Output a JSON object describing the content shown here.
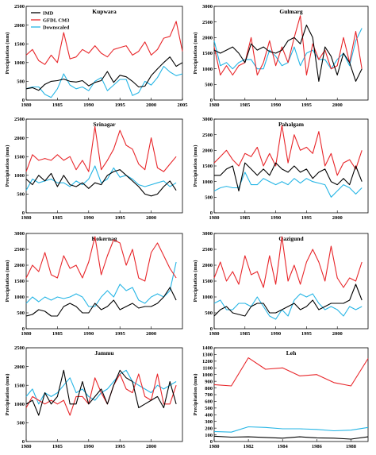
{
  "colors": {
    "IMD": "#000000",
    "GFDL CM3": "#e8262a",
    "Downscaled": "#25b5e5"
  },
  "legend": [
    {
      "name": "IMD",
      "color": "#000000"
    },
    {
      "name": "GFDL CM3",
      "color": "#e8262a"
    },
    {
      "name": "Downscaled",
      "color": "#25b5e5"
    }
  ],
  "chart_data": [
    {
      "type": "line",
      "title": "Kupwara",
      "ylabel": "Precipitation (mm)",
      "xlim": [
        1980,
        2005
      ],
      "ylim": [
        0,
        2500
      ],
      "xticks": [
        1980,
        1985,
        1990,
        1995,
        2000,
        2005
      ],
      "yticks": [
        0,
        500,
        1000,
        1500,
        2000,
        2500
      ],
      "legend": "top-left",
      "x": [
        1980,
        1981,
        1982,
        1983,
        1984,
        1985,
        1986,
        1987,
        1988,
        1989,
        1990,
        1991,
        1992,
        1993,
        1994,
        1995,
        1996,
        1997,
        1998,
        1999,
        2000,
        2001,
        2002,
        2003,
        2004,
        2005
      ],
      "series": [
        {
          "name": "IMD",
          "values": [
            300,
            330,
            260,
            420,
            500,
            520,
            560,
            500,
            480,
            520,
            380,
            470,
            520,
            760,
            470,
            660,
            620,
            500,
            350,
            370,
            650,
            830,
            1000,
            1150,
            900,
            1000
          ]
        },
        {
          "name": "GFDL CM3",
          "values": [
            1200,
            1350,
            1050,
            950,
            1200,
            1000,
            1800,
            1100,
            1150,
            1350,
            1250,
            1450,
            1250,
            1150,
            1350,
            1400,
            1450,
            1200,
            1300,
            1550,
            1200,
            1350,
            1650,
            1700,
            2100,
            1300
          ]
        },
        {
          "name": "Downscaled",
          "values": [
            300,
            350,
            350,
            150,
            70,
            300,
            700,
            400,
            300,
            350,
            250,
            500,
            600,
            250,
            400,
            550,
            550,
            120,
            200,
            500,
            400,
            600,
            900,
            750,
            650,
            700
          ]
        }
      ]
    },
    {
      "type": "line",
      "title": "Gulmarg",
      "ylabel": "Precipitation (mm)",
      "xlim": [
        1980,
        2005
      ],
      "ylim": [
        0,
        3000
      ],
      "xticks": [
        1980,
        1985,
        1990,
        1995,
        2000
      ],
      "yticks": [
        0,
        500,
        1000,
        1500,
        2000,
        2500,
        3000
      ],
      "x": [
        1980,
        1981,
        1982,
        1983,
        1984,
        1985,
        1986,
        1987,
        1988,
        1989,
        1990,
        1991,
        1992,
        1993,
        1994,
        1995,
        1996,
        1997,
        1998,
        1999,
        2000,
        2001,
        2002,
        2003,
        2004
      ],
      "series": [
        {
          "name": "IMD",
          "values": [
            1600,
            1500,
            1600,
            1700,
            1500,
            1200,
            1800,
            1600,
            1700,
            1550,
            1500,
            1600,
            1900,
            2000,
            1800,
            2400,
            2000,
            600,
            1700,
            1400,
            800,
            1500,
            1200,
            600,
            1000
          ]
        },
        {
          "name": "GFDL CM3",
          "values": [
            1700,
            800,
            1100,
            800,
            1100,
            1200,
            2000,
            800,
            1200,
            1900,
            1100,
            1700,
            1200,
            2000,
            2700,
            800,
            1800,
            1300,
            1600,
            1000,
            1100,
            2000,
            1200,
            2200,
            1000
          ]
        },
        {
          "name": "Downscaled",
          "values": [
            1900,
            1100,
            1200,
            1000,
            1200,
            1300,
            1300,
            1000,
            1000,
            1600,
            1400,
            1100,
            1200,
            1700,
            1100,
            1500,
            1600,
            1300,
            1300,
            1000,
            1300,
            1500,
            1100,
            1900,
            2300
          ]
        }
      ]
    },
    {
      "type": "line",
      "title": "Srinagar",
      "ylabel": "Precipitation (mm)",
      "xlim": [
        1980,
        2005
      ],
      "ylim": [
        0,
        2500
      ],
      "xticks": [
        1980,
        1985,
        1990,
        1995,
        2000
      ],
      "yticks": [
        0,
        500,
        1000,
        1500,
        2000,
        2500
      ],
      "x": [
        1980,
        1981,
        1982,
        1983,
        1984,
        1985,
        1986,
        1987,
        1988,
        1989,
        1990,
        1991,
        1992,
        1993,
        1994,
        1995,
        1996,
        1997,
        1998,
        1999,
        2000,
        2001,
        2002,
        2003,
        2004
      ],
      "series": [
        {
          "name": "IMD",
          "values": [
            900,
            750,
            1000,
            850,
            1050,
            700,
            1000,
            750,
            700,
            800,
            650,
            800,
            750,
            1000,
            1100,
            1150,
            1000,
            850,
            700,
            500,
            450,
            500,
            700,
            850,
            600
          ]
        },
        {
          "name": "GFDL CM3",
          "values": [
            1100,
            1550,
            1400,
            1450,
            1400,
            1550,
            1400,
            1500,
            1150,
            1400,
            1100,
            2300,
            1150,
            1400,
            1700,
            2200,
            1800,
            1700,
            1300,
            1150,
            2000,
            1200,
            1100,
            1300,
            1500
          ]
        },
        {
          "name": "Downscaled",
          "values": [
            600,
            900,
            800,
            850,
            900,
            800,
            800,
            700,
            850,
            750,
            900,
            1250,
            800,
            900,
            1200,
            950,
            1000,
            900,
            750,
            700,
            750,
            800,
            850,
            700,
            800
          ]
        }
      ]
    },
    {
      "type": "line",
      "title": "Pahalgam",
      "ylabel": "Precipitation (mm)",
      "xlim": [
        1980,
        2005
      ],
      "ylim": [
        0,
        3000
      ],
      "xticks": [
        1980,
        1985,
        1990,
        1995,
        2000
      ],
      "yticks": [
        0,
        500,
        1000,
        1500,
        2000,
        2500,
        3000
      ],
      "x": [
        1980,
        1981,
        1982,
        1983,
        1984,
        1985,
        1986,
        1987,
        1988,
        1989,
        1990,
        1991,
        1992,
        1993,
        1994,
        1995,
        1996,
        1997,
        1998,
        1999,
        2000,
        2001,
        2002,
        2003,
        2004
      ],
      "series": [
        {
          "name": "IMD",
          "values": [
            1200,
            1200,
            1400,
            1500,
            700,
            1600,
            1400,
            1200,
            1400,
            1200,
            1600,
            1400,
            1300,
            1500,
            1300,
            1400,
            1100,
            1300,
            1400,
            1000,
            900,
            1100,
            900,
            1500,
            1000
          ]
        },
        {
          "name": "GFDL CM3",
          "values": [
            1600,
            1800,
            2000,
            1700,
            1500,
            1900,
            1800,
            2100,
            1500,
            1900,
            1500,
            2800,
            1600,
            2500,
            2000,
            2100,
            1900,
            2600,
            1500,
            1900,
            1200,
            1600,
            1700,
            1400,
            2000
          ]
        },
        {
          "name": "Downscaled",
          "values": [
            700,
            800,
            850,
            800,
            800,
            1300,
            900,
            900,
            1100,
            1000,
            900,
            1000,
            900,
            1100,
            950,
            1100,
            1000,
            950,
            900,
            500,
            700,
            900,
            800,
            600,
            800
          ]
        }
      ]
    },
    {
      "type": "line",
      "title": "Kokernag",
      "ylabel": "Precipitation (mm)",
      "xlim": [
        1980,
        2005
      ],
      "ylim": [
        0,
        3000
      ],
      "xticks": [
        1980,
        1985,
        1990,
        1995,
        2000
      ],
      "yticks": [
        0,
        500,
        1000,
        1500,
        2000,
        2500,
        3000
      ],
      "x": [
        1980,
        1981,
        1982,
        1983,
        1984,
        1985,
        1986,
        1987,
        1988,
        1989,
        1990,
        1991,
        1992,
        1993,
        1994,
        1995,
        1996,
        1997,
        1998,
        1999,
        2000,
        2001,
        2002,
        2003,
        2004
      ],
      "series": [
        {
          "name": "IMD",
          "values": [
            400,
            450,
            600,
            550,
            400,
            400,
            700,
            800,
            700,
            500,
            500,
            800,
            600,
            700,
            900,
            600,
            700,
            800,
            650,
            700,
            700,
            800,
            1000,
            1300,
            900
          ]
        },
        {
          "name": "GFDL CM3",
          "values": [
            1600,
            2000,
            1800,
            2400,
            1700,
            1600,
            2300,
            1900,
            2000,
            1600,
            2100,
            2900,
            1700,
            2300,
            2800,
            2700,
            2000,
            2500,
            1600,
            1500,
            2400,
            2700,
            2300,
            1900,
            1600
          ]
        },
        {
          "name": "Downscaled",
          "values": [
            800,
            1000,
            850,
            1000,
            900,
            1000,
            950,
            1000,
            1100,
            1000,
            700,
            700,
            1000,
            1200,
            1000,
            1400,
            1200,
            1300,
            900,
            800,
            1000,
            1100,
            1000,
            1200,
            2100
          ]
        }
      ]
    },
    {
      "type": "line",
      "title": "Qazigund",
      "ylabel": "Precipitation (mm)",
      "xlim": [
        1980,
        2005
      ],
      "ylim": [
        0,
        3000
      ],
      "xticks": [
        1980,
        1985,
        1990,
        1995,
        2000
      ],
      "yticks": [
        0,
        500,
        1000,
        1500,
        2000,
        2500,
        3000
      ],
      "x": [
        1980,
        1981,
        1982,
        1983,
        1984,
        1985,
        1986,
        1987,
        1988,
        1989,
        1990,
        1991,
        1992,
        1993,
        1994,
        1995,
        1996,
        1997,
        1998,
        1999,
        2000,
        2001,
        2002,
        2003,
        2004
      ],
      "series": [
        {
          "name": "IMD",
          "values": [
            400,
            600,
            700,
            500,
            450,
            400,
            700,
            800,
            800,
            500,
            500,
            600,
            700,
            800,
            600,
            700,
            900,
            600,
            700,
            800,
            800,
            800,
            900,
            1400,
            900
          ]
        },
        {
          "name": "GFDL CM3",
          "values": [
            1600,
            2100,
            1500,
            1800,
            1400,
            2300,
            1700,
            1800,
            1300,
            2300,
            1400,
            2900,
            1500,
            2000,
            1400,
            2100,
            2500,
            2100,
            1500,
            2600,
            1600,
            1300,
            1600,
            1500,
            2100
          ]
        },
        {
          "name": "Downscaled",
          "values": [
            800,
            900,
            600,
            600,
            800,
            800,
            700,
            1000,
            700,
            400,
            300,
            600,
            400,
            900,
            1100,
            1000,
            1100,
            800,
            600,
            700,
            600,
            400,
            700,
            600,
            700
          ]
        }
      ]
    },
    {
      "type": "line",
      "title": "Jammu",
      "ylabel": "Precipitation (mm)",
      "xlim": [
        1980,
        2005
      ],
      "ylim": [
        0,
        2500
      ],
      "xticks": [
        1980,
        1985,
        1990,
        1995,
        2000
      ],
      "yticks": [
        0,
        500,
        1000,
        1500,
        2000,
        2500
      ],
      "x": [
        1980,
        1981,
        1982,
        1983,
        1984,
        1985,
        1986,
        1987,
        1988,
        1989,
        1990,
        1991,
        1992,
        1993,
        1994,
        1995,
        1996,
        1997,
        1998,
        1999,
        2000,
        2001,
        2002,
        2003,
        2004
      ],
      "series": [
        {
          "name": "IMD",
          "values": [
            1000,
            1100,
            700,
            1300,
            1000,
            1200,
            1900,
            1000,
            1000,
            1600,
            1000,
            1200,
            1400,
            1000,
            1500,
            1900,
            1700,
            1600,
            900,
            1000,
            1100,
            1200,
            900,
            1600,
            1000
          ]
        },
        {
          "name": "GFDL CM3",
          "values": [
            900,
            1200,
            1100,
            1000,
            1100,
            1000,
            1100,
            700,
            1200,
            1200,
            1000,
            1700,
            1300,
            1000,
            1500,
            1800,
            1400,
            1300,
            1800,
            1200,
            1100,
            1800,
            1000,
            1000,
            1500
          ]
        },
        {
          "name": "Downscaled",
          "values": [
            1200,
            1400,
            1000,
            1300,
            1200,
            1300,
            1500,
            1700,
            1300,
            1400,
            1200,
            1100,
            1300,
            1400,
            1600,
            1800,
            1900,
            1600,
            1500,
            1400,
            1300,
            1500,
            1400,
            1500,
            1600
          ]
        }
      ]
    },
    {
      "type": "line",
      "title": "Leh",
      "ylabel": "Precipitation (mm)",
      "xlim": [
        1980,
        1989
      ],
      "ylim": [
        0,
        1400
      ],
      "xticks": [
        1980,
        1982,
        1984,
        1986,
        1988
      ],
      "yticks": [
        0,
        100,
        200,
        300,
        400,
        500,
        600,
        700,
        800,
        900,
        1000,
        1100,
        1200,
        1300,
        1400
      ],
      "x": [
        1980,
        1981,
        1982,
        1983,
        1984,
        1985,
        1986,
        1987,
        1988,
        1989
      ],
      "series": [
        {
          "name": "IMD",
          "values": [
            80,
            65,
            70,
            60,
            50,
            70,
            55,
            50,
            35,
            70
          ]
        },
        {
          "name": "GFDL CM3",
          "values": [
            850,
            830,
            1250,
            1080,
            1100,
            980,
            1000,
            880,
            830,
            1240
          ]
        },
        {
          "name": "Downscaled",
          "values": [
            150,
            140,
            220,
            210,
            190,
            190,
            180,
            160,
            170,
            210
          ]
        }
      ]
    }
  ]
}
